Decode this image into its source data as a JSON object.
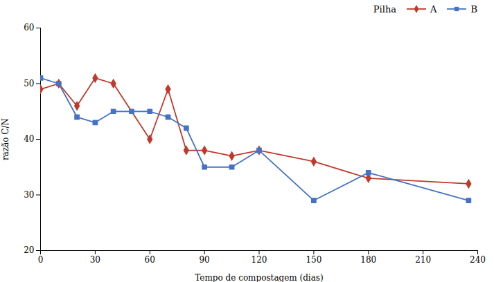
{
  "chart_data": {
    "type": "line",
    "xlabel": "Tempo de compostagem (dias)",
    "ylabel": "razão C/N",
    "legend_title": "Pilha",
    "legend": "upper right",
    "grid": false,
    "xlim": [
      0,
      240
    ],
    "ylim": [
      20,
      60
    ],
    "xticks": [
      0,
      30,
      60,
      90,
      120,
      150,
      180,
      210,
      240
    ],
    "yticks": [
      20,
      30,
      40,
      50,
      60
    ],
    "series": [
      {
        "name": "A",
        "color": "#c0392b",
        "marker": "diamond",
        "x": [
          0,
          10,
          20,
          30,
          40,
          60,
          70,
          80,
          90,
          105,
          120,
          150,
          180,
          235
        ],
        "values": [
          49,
          50,
          46,
          51,
          50,
          40,
          49,
          38,
          38,
          37,
          38,
          36,
          33,
          32
        ]
      },
      {
        "name": "B",
        "color": "#4472C4",
        "marker": "square",
        "x": [
          0,
          10,
          20,
          30,
          40,
          50,
          60,
          70,
          80,
          90,
          105,
          120,
          150,
          180,
          235
        ],
        "values": [
          51,
          50,
          44,
          43,
          45,
          45,
          45,
          44,
          42,
          35,
          35,
          38,
          29,
          34,
          29
        ]
      }
    ]
  }
}
